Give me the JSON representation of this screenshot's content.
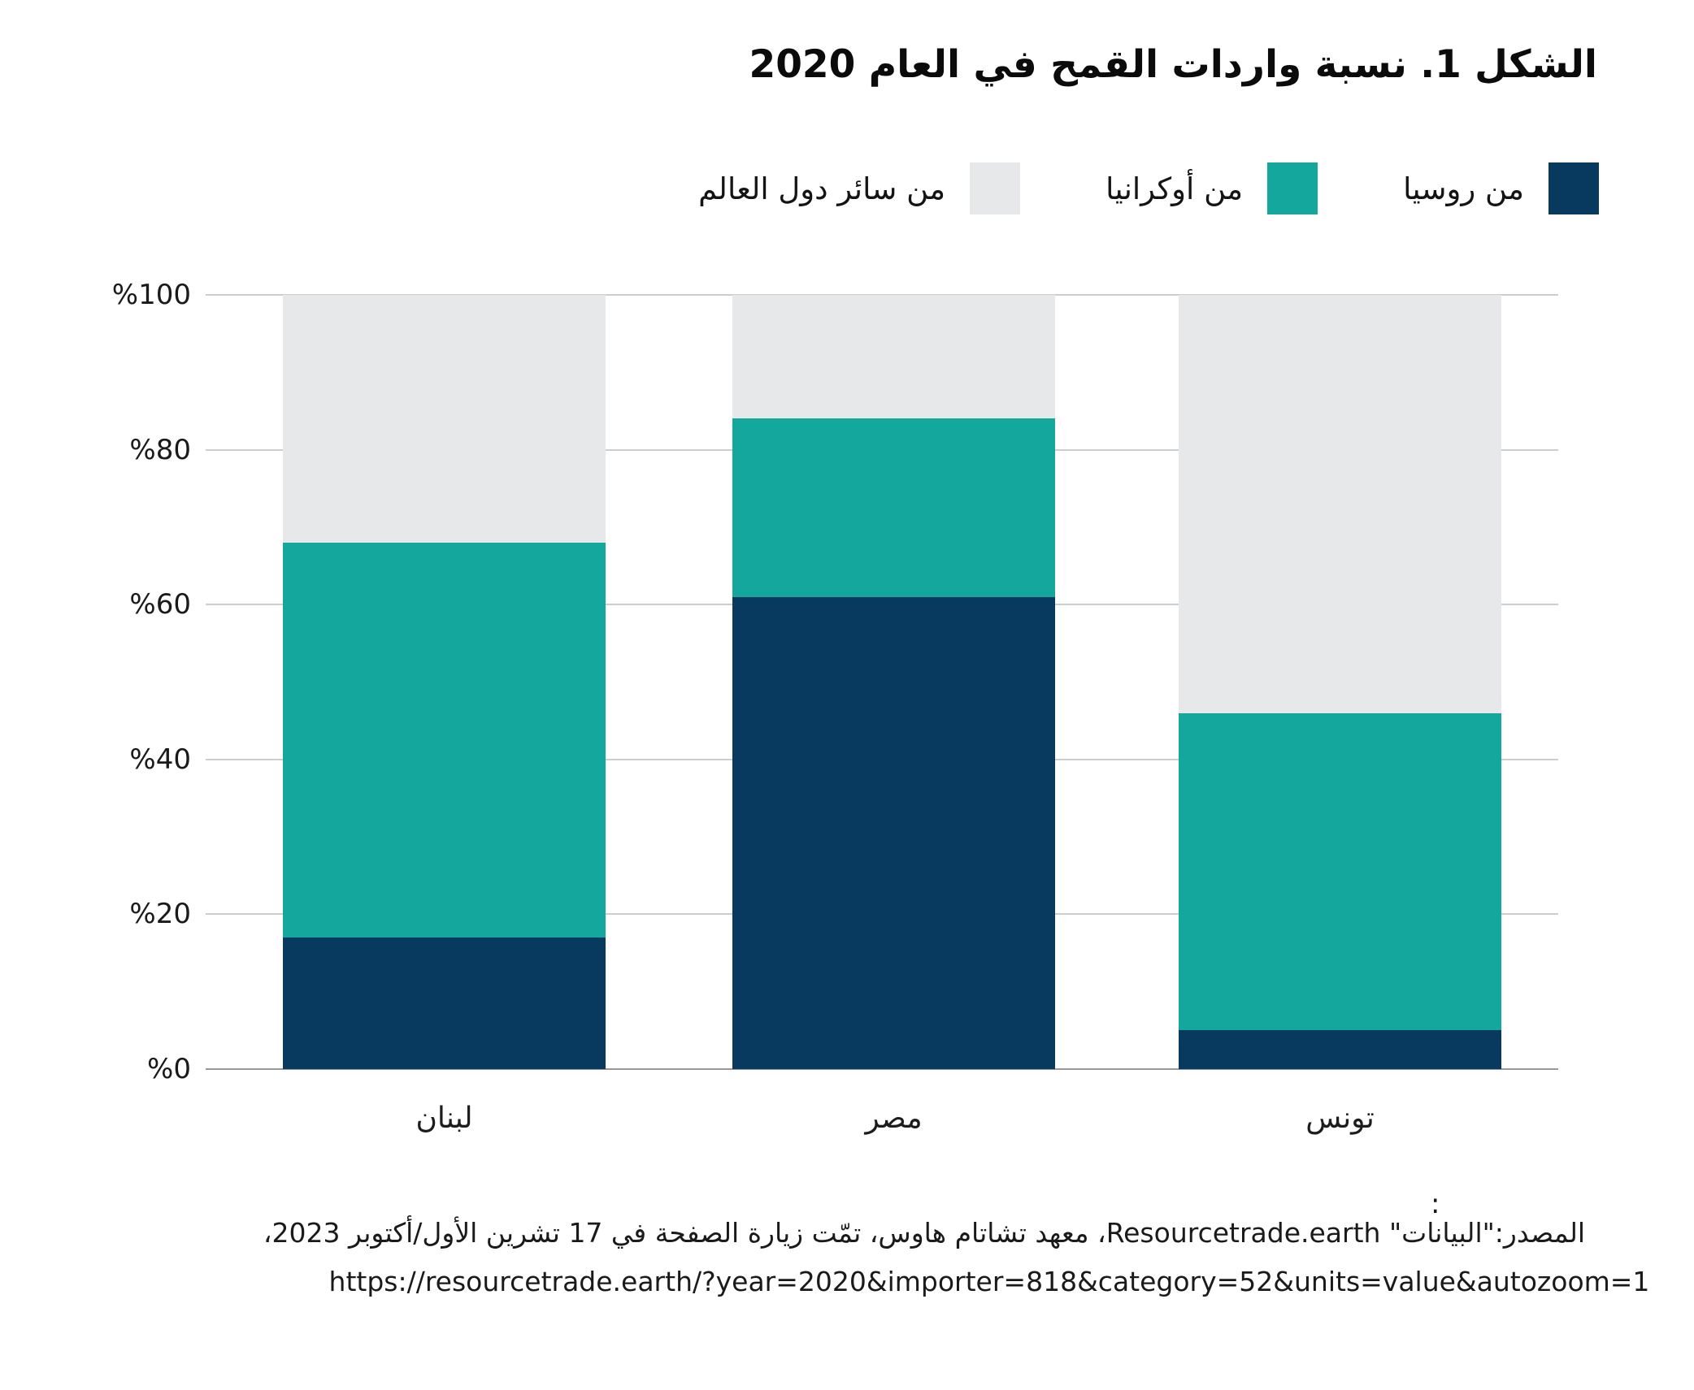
{
  "title": "الشكل 1. نسبة واردات القمح في العام 2020",
  "colors": {
    "russia": "#073a5e",
    "ukraine": "#14a79d",
    "rest_of_world": "#e6e8ea",
    "gridline": "#cbced1",
    "zero_axis": "#96999e"
  },
  "legend": {
    "items": [
      {
        "key": "russia",
        "label": "من روسيا",
        "color": "#073a5e"
      },
      {
        "key": "ukraine",
        "label": "من أوكرانيا",
        "color": "#14a79d"
      },
      {
        "key": "rest_of_world",
        "label": "من سائر دول العالم",
        "color": "#e6e8ea"
      }
    ]
  },
  "chart_data": {
    "type": "bar",
    "stacked": true,
    "title": "الشكل 1. نسبة واردات القمح في العام 2020",
    "categories": [
      "لبنان",
      "مصر",
      "تونس"
    ],
    "category_keys": [
      "lebanon",
      "egypt",
      "tunisia"
    ],
    "series": [
      {
        "key": "russia",
        "name": "من روسيا",
        "color": "#073a5e",
        "values": [
          17,
          61,
          5
        ]
      },
      {
        "key": "ukraine",
        "name": "من أوكرانيا",
        "color": "#14a79d",
        "values": [
          51,
          23,
          41
        ]
      },
      {
        "key": "rest_of_world",
        "name": "من سائر دول العالم",
        "color": "#e6e8ea",
        "values": [
          32,
          16,
          54
        ]
      }
    ],
    "stack_tops_percent": {
      "lebanon": {
        "russia": 17,
        "ukraine": 68,
        "rest_of_world": 100
      },
      "egypt": {
        "russia": 61,
        "ukraine": 84,
        "rest_of_world": 100
      },
      "tunisia": {
        "russia": 5,
        "ukraine": 46,
        "rest_of_world": 100
      }
    },
    "ylim": [
      0,
      100
    ],
    "yticks": [
      {
        "value": 0,
        "label": "%0"
      },
      {
        "value": 20,
        "label": "%20"
      },
      {
        "value": 40,
        "label": "%40"
      },
      {
        "value": 60,
        "label": "%60"
      },
      {
        "value": 80,
        "label": "%80"
      },
      {
        "value": 100,
        "label": "%100"
      }
    ],
    "grid": true,
    "legend_position": "top"
  },
  "source": {
    "colon": ":",
    "line1": "المصدر:\"البيانات\" Resourcetrade.earth، معهد تشاتام هاوس، تمّت زيارة الصفحة في 17 تشرين الأول/أكتوبر 2023،",
    "url": "https://resourcetrade.earth/?year=2020&importer=818&category=52&units=value&autozoom=1"
  }
}
